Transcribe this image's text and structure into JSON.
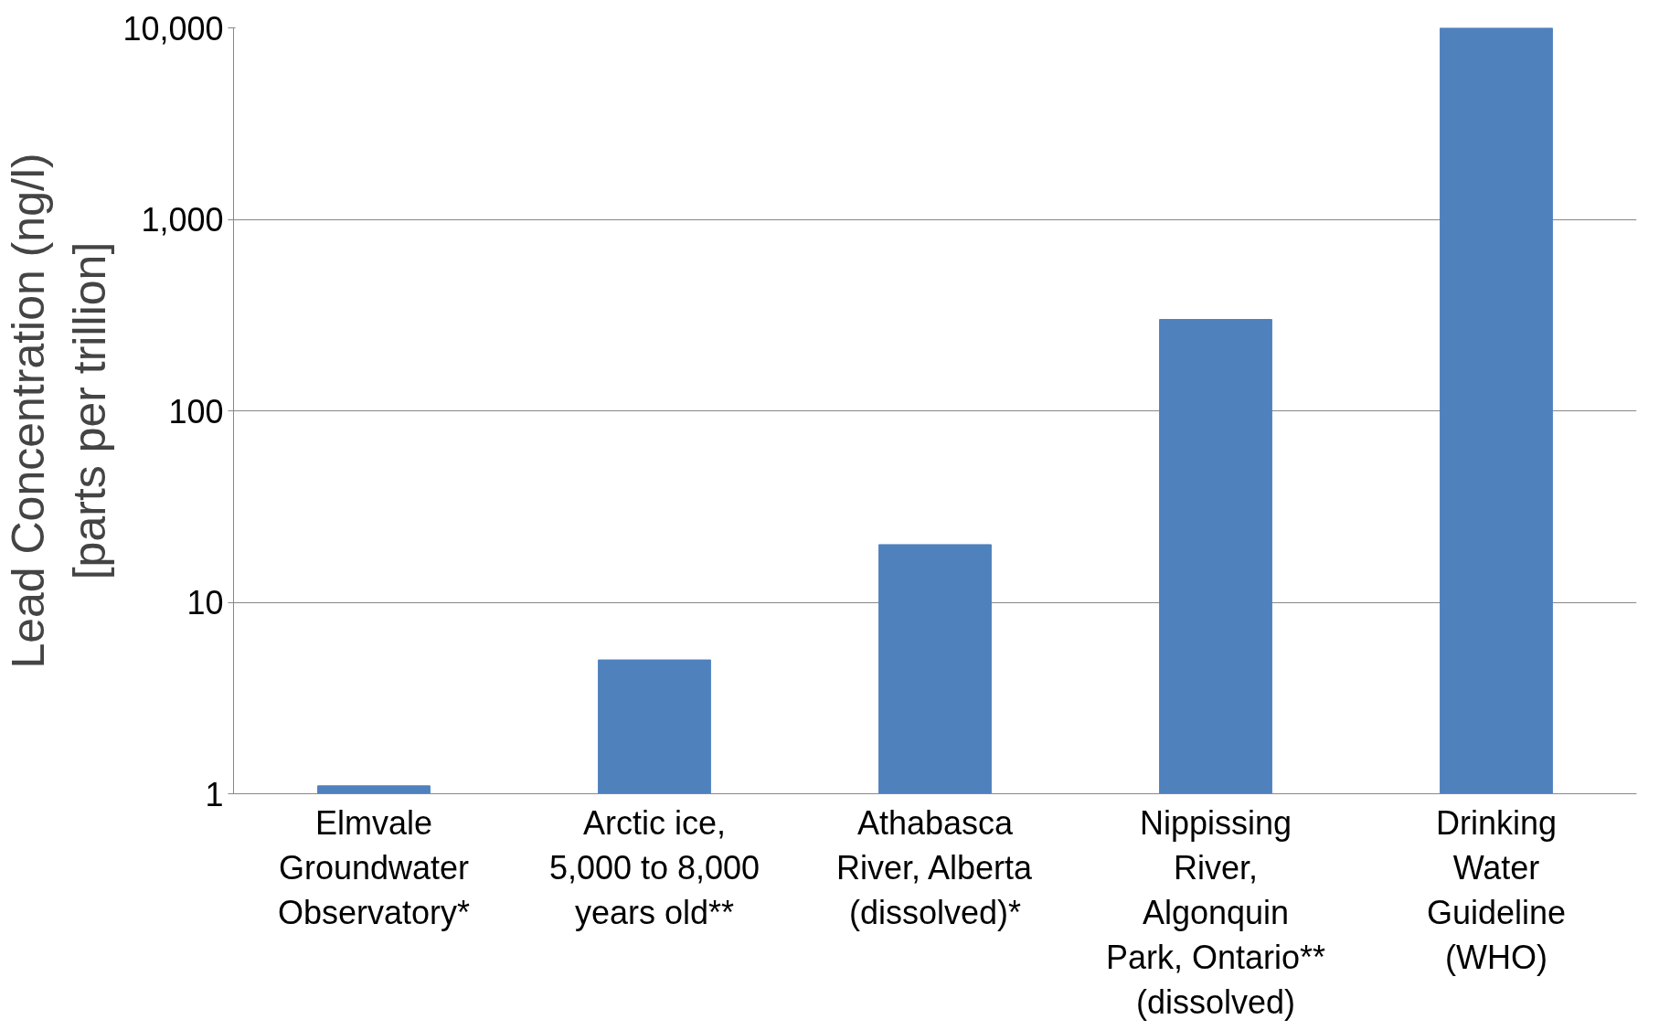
{
  "chart_data": {
    "type": "bar",
    "ylabel": "Lead Concentration (ng/l)\n[parts per trillion]",
    "categories": [
      "Elmvale\nGroundwater\nObservatory*",
      "Arctic ice,\n5,000 to 8,000\nyears old**",
      "Athabasca\nRiver, Alberta\n(dissolved)*",
      "Nippissing\nRiver,\nAlgonquin\nPark, Ontario**\n(dissolved)",
      "Drinking\nWater\nGuideline\n(WHO)"
    ],
    "values": [
      1.1,
      5,
      20,
      300,
      10000
    ],
    "color": "#4f81bd",
    "log": true,
    "ylim": [
      1,
      10000
    ],
    "yticks": [
      1,
      10,
      100,
      {
        "value": 1000,
        "label": "1,000"
      },
      {
        "value": 10000,
        "label": "10,000"
      }
    ],
    "grid": "y"
  }
}
